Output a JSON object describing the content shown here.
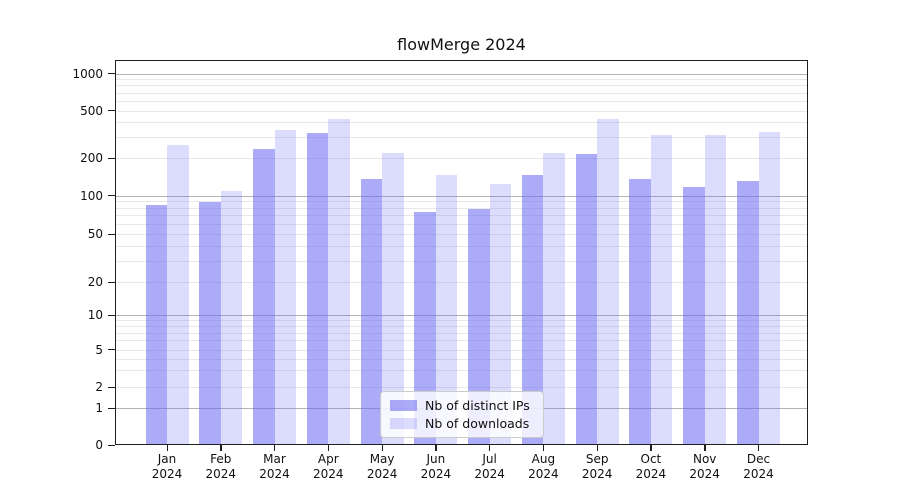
{
  "chart_data": {
    "type": "bar",
    "title": "flowMerge 2024",
    "categories": [
      "Jan",
      "Feb",
      "Mar",
      "Apr",
      "May",
      "Jun",
      "Jul",
      "Aug",
      "Sep",
      "Oct",
      "Nov",
      "Dec"
    ],
    "category_year": "2024",
    "series": [
      {
        "name": "Nb of distinct IPs",
        "color": "rgba(102,102,240,0.55)",
        "values": [
          85,
          89,
          240,
          325,
          135,
          75,
          78,
          145,
          218,
          135,
          117,
          130
        ]
      },
      {
        "name": "Nb of downloads",
        "color": "rgba(102,102,240,0.23)",
        "values": [
          258,
          108,
          345,
          425,
          222,
          145,
          124,
          220,
          427,
          315,
          315,
          330
        ]
      }
    ],
    "yticks": [
      "0",
      "1",
      "2",
      "5",
      "10",
      "20",
      "50",
      "100",
      "200",
      "500",
      "1000"
    ],
    "yscale": "log scale with 0 baseline (symlog-like)",
    "ylim": [
      0,
      1300
    ],
    "grid": "on",
    "legend_position": "lower center"
  }
}
